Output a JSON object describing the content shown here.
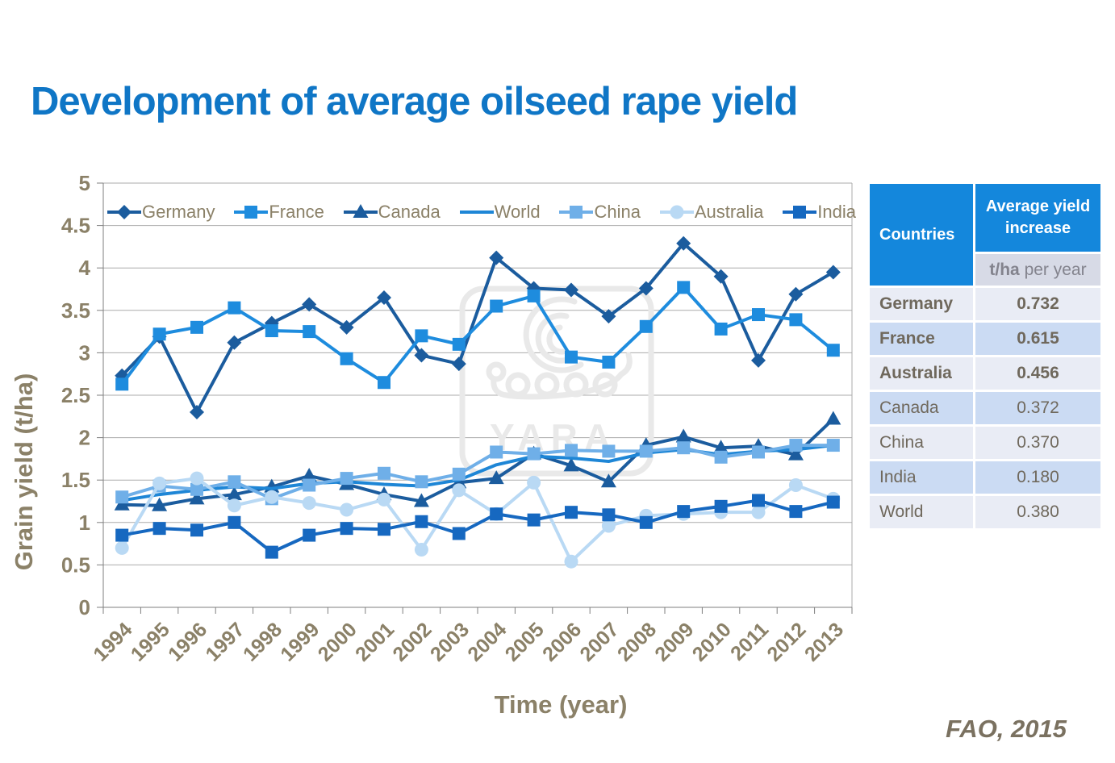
{
  "page": {
    "title": "Development of average oilseed rape yield",
    "source": "FAO, 2015"
  },
  "chart_data": {
    "type": "line",
    "xlabel": "Time (year)",
    "ylabel": "Grain yield (t/ha)",
    "ylim": [
      0,
      5
    ],
    "ytick_step": 0.5,
    "grid": true,
    "legend_position": "top-inside",
    "watermark": "YARA",
    "categories": [
      1994,
      1995,
      1996,
      1997,
      1998,
      1999,
      2000,
      2001,
      2002,
      2003,
      2004,
      2005,
      2006,
      2007,
      2008,
      2009,
      2010,
      2011,
      2012,
      2013
    ],
    "series": [
      {
        "name": "Germany",
        "color": "#1B5C9E",
        "marker": "diamond",
        "values": [
          2.73,
          3.19,
          2.3,
          3.12,
          3.35,
          3.57,
          3.3,
          3.65,
          2.97,
          2.87,
          4.12,
          3.76,
          3.74,
          3.43,
          3.76,
          4.29,
          3.9,
          2.91,
          3.69,
          3.95
        ]
      },
      {
        "name": "France",
        "color": "#1E8CDE",
        "marker": "square",
        "values": [
          2.63,
          3.22,
          3.3,
          3.53,
          3.26,
          3.25,
          2.93,
          2.65,
          3.2,
          3.1,
          3.55,
          3.67,
          2.95,
          2.89,
          3.31,
          3.77,
          3.28,
          3.45,
          3.39,
          3.03
        ]
      },
      {
        "name": "Canada",
        "color": "#1B5C9E",
        "marker": "triangle",
        "values": [
          1.21,
          1.2,
          1.28,
          1.33,
          1.42,
          1.55,
          1.45,
          1.33,
          1.25,
          1.47,
          1.52,
          1.81,
          1.67,
          1.48,
          1.91,
          2.01,
          1.88,
          1.9,
          1.8,
          2.22
        ]
      },
      {
        "name": "World",
        "color": "#1E86D6",
        "marker": "none",
        "values": [
          1.26,
          1.33,
          1.38,
          1.42,
          1.4,
          1.46,
          1.48,
          1.45,
          1.43,
          1.5,
          1.68,
          1.78,
          1.76,
          1.72,
          1.82,
          1.86,
          1.8,
          1.84,
          1.86,
          1.91
        ]
      },
      {
        "name": "China",
        "color": "#6FAFE8",
        "marker": "square",
        "values": [
          1.3,
          1.43,
          1.39,
          1.48,
          1.28,
          1.44,
          1.52,
          1.58,
          1.48,
          1.57,
          1.83,
          1.81,
          1.85,
          1.84,
          1.84,
          1.88,
          1.77,
          1.83,
          1.91,
          1.91
        ]
      },
      {
        "name": "Australia",
        "color": "#B9D9F4",
        "marker": "circle",
        "values": [
          0.7,
          1.46,
          1.52,
          1.2,
          1.3,
          1.23,
          1.15,
          1.27,
          0.68,
          1.38,
          1.1,
          1.47,
          0.54,
          0.96,
          1.08,
          1.1,
          1.12,
          1.12,
          1.44,
          1.28
        ]
      },
      {
        "name": "India",
        "color": "#1668C0",
        "marker": "square",
        "values": [
          0.85,
          0.93,
          0.91,
          1.0,
          0.65,
          0.85,
          0.93,
          0.92,
          1.01,
          0.87,
          1.1,
          1.03,
          1.12,
          1.09,
          1.0,
          1.13,
          1.19,
          1.26,
          1.13,
          1.24
        ]
      }
    ]
  },
  "table": {
    "header": {
      "col1": "Countries",
      "col2": "Average yield increase"
    },
    "subheader": {
      "unit_bold": "t/ha",
      "unit_rest": " per year"
    },
    "rows": [
      {
        "country": "Germany",
        "value": "0.732",
        "bold": true
      },
      {
        "country": "France",
        "value": "0.615",
        "bold": true
      },
      {
        "country": "Australia",
        "value": "0.456",
        "bold": true
      },
      {
        "country": "Canada",
        "value": "0.372",
        "bold": false
      },
      {
        "country": "China",
        "value": "0.370",
        "bold": false
      },
      {
        "country": "India",
        "value": "0.180",
        "bold": false
      },
      {
        "country": "World",
        "value": "0.380",
        "bold": false
      }
    ]
  },
  "colors": {
    "title": "#0F76C6",
    "axis_text": "#8B8168",
    "gridline": "#ABABAB",
    "axis_line": "#7F7F7F",
    "table_header_bg": "#1487DC",
    "table_subheader_bg": "#D7DAE6",
    "table_row_light": "#E9ECF5",
    "table_row_blue": "#CBDBF3",
    "table_text": "#6F685C",
    "watermark": "#E9E9E9",
    "source_text": "#7A7160"
  }
}
